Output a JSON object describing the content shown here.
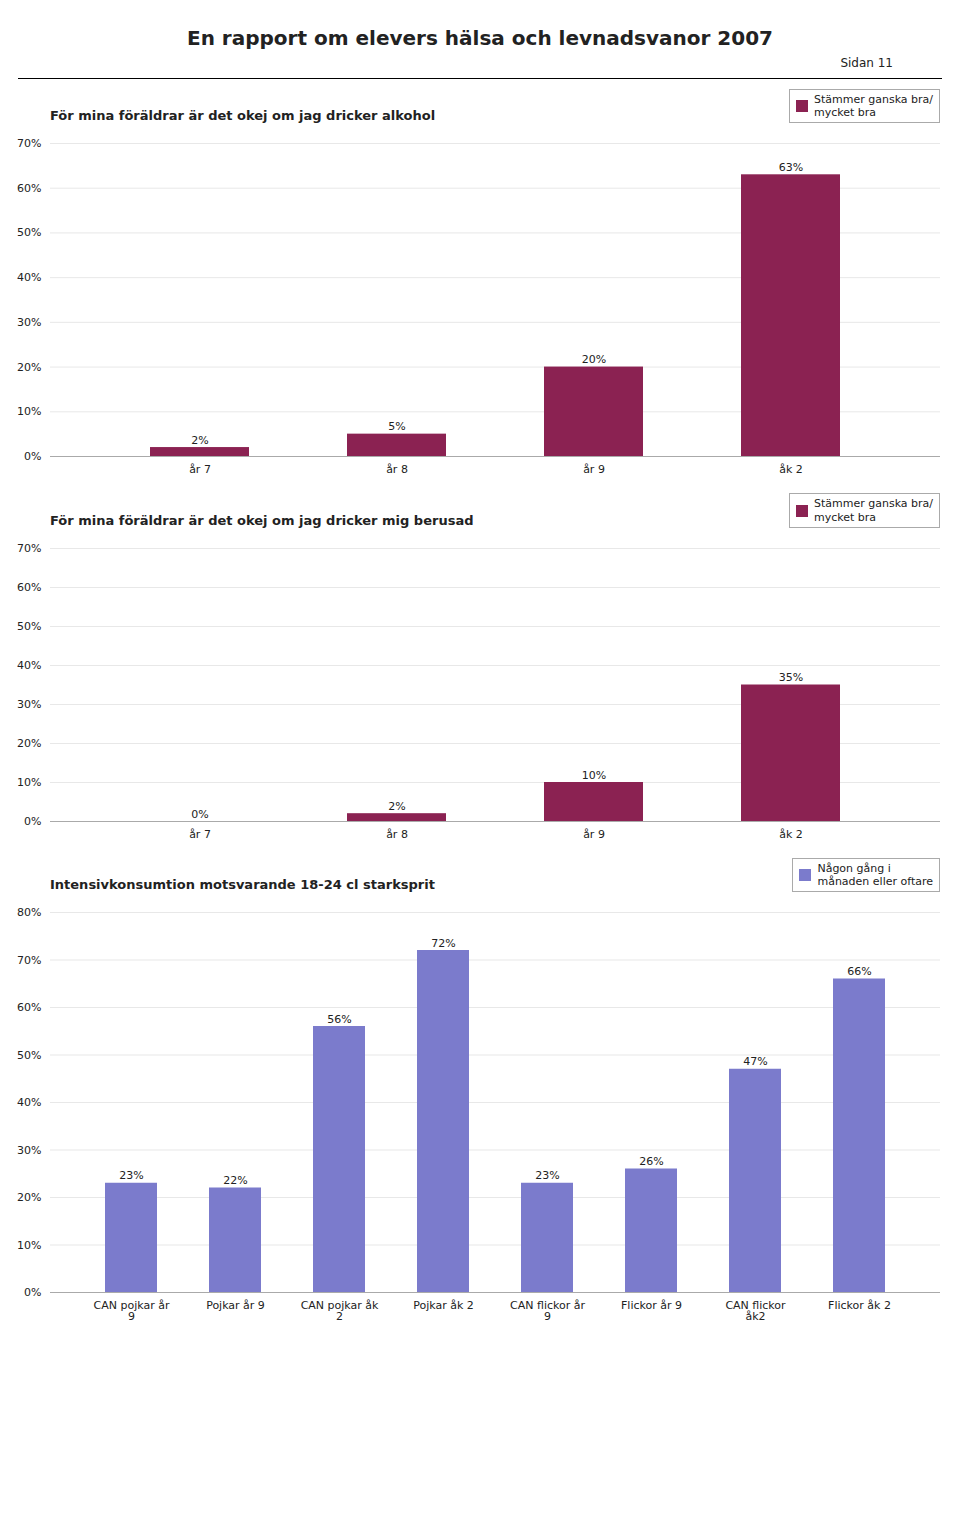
{
  "title": "En rapport om elevers hälsa och levnadsvanor 2007",
  "subtitle": "Sidan 11",
  "chart_data": [
    {
      "type": "bar",
      "title": "För mina föräldrar är det okej om jag dricker alkohol",
      "categories": [
        "år 7",
        "år 8",
        "år 9",
        "åk 2"
      ],
      "series": [
        {
          "name": "Stämmer ganska bra/\nmycket bra",
          "color": "#8B2252",
          "values": [
            2,
            5,
            20,
            63
          ],
          "value_labels": [
            "2%",
            "5%",
            "20%",
            "63%"
          ]
        }
      ],
      "ylim": [
        0,
        70
      ],
      "yticks": [
        {
          "value": 0,
          "label": "0%"
        },
        {
          "value": 10,
          "label": "10%"
        },
        {
          "value": 20,
          "label": "20%"
        },
        {
          "value": 30,
          "label": "30%"
        },
        {
          "value": 40,
          "label": "40%"
        },
        {
          "value": 50,
          "label": "50%"
        },
        {
          "value": 60,
          "label": "60%"
        },
        {
          "value": 70,
          "label": "70%"
        }
      ],
      "grid": true,
      "legend": "upper right",
      "data_labels": true
    },
    {
      "type": "bar",
      "title": "För mina föräldrar är det okej om jag dricker mig berusad",
      "categories": [
        "år 7",
        "år 8",
        "år 9",
        "åk 2"
      ],
      "series": [
        {
          "name": "Stämmer ganska bra/\nmycket bra",
          "color": "#8B2252",
          "values": [
            0,
            2,
            10,
            35
          ],
          "value_labels": [
            "0%",
            "2%",
            "10%",
            "35%"
          ]
        }
      ],
      "ylim": [
        0,
        70
      ],
      "yticks": [
        {
          "value": 0,
          "label": "0%"
        },
        {
          "value": 10,
          "label": "10%"
        },
        {
          "value": 20,
          "label": "20%"
        },
        {
          "value": 30,
          "label": "30%"
        },
        {
          "value": 40,
          "label": "40%"
        },
        {
          "value": 50,
          "label": "50%"
        },
        {
          "value": 60,
          "label": "60%"
        },
        {
          "value": 70,
          "label": "70%"
        }
      ],
      "grid": true,
      "legend": "upper right",
      "data_labels": true
    },
    {
      "type": "bar",
      "title": "Intensivkonsumtion motsvarande 18-24 cl starksprit",
      "categories": [
        "CAN pojkar år\n9",
        "Pojkar år 9",
        "CAN pojkar åk\n2",
        "Pojkar åk 2",
        "CAN flickor år\n9",
        "Flickor år 9",
        "CAN flickor\nåk2",
        "Flickor åk 2"
      ],
      "series": [
        {
          "name": "Någon gång i\nmånaden eller oftare",
          "color": "#7b7bcc",
          "values": [
            23,
            22,
            56,
            72,
            23,
            26,
            47,
            66
          ],
          "value_labels": [
            "23%",
            "22%",
            "56%",
            "72%",
            "23%",
            "26%",
            "47%",
            "66%"
          ]
        }
      ],
      "ylim": [
        0,
        80
      ],
      "yticks": [
        {
          "value": 0,
          "label": "0%"
        },
        {
          "value": 10,
          "label": "10%"
        },
        {
          "value": 20,
          "label": "20%"
        },
        {
          "value": 30,
          "label": "30%"
        },
        {
          "value": 40,
          "label": "40%"
        },
        {
          "value": 50,
          "label": "50%"
        },
        {
          "value": 60,
          "label": "60%"
        },
        {
          "value": 70,
          "label": "70%"
        },
        {
          "value": 80,
          "label": "80%"
        }
      ],
      "grid": true,
      "legend": "upper right",
      "data_labels": true
    }
  ]
}
